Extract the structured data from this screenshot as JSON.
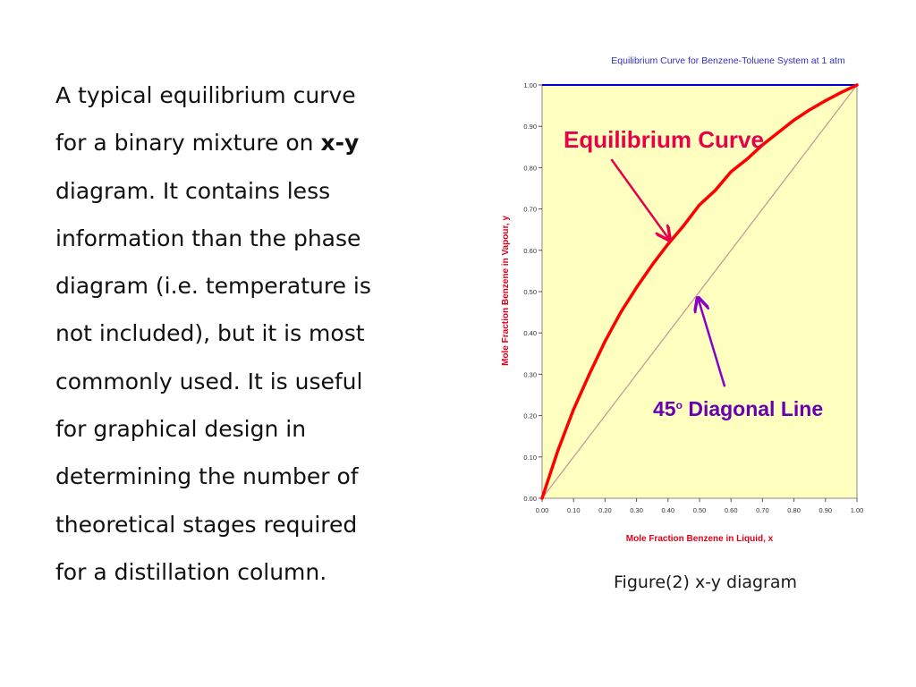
{
  "paragraph": {
    "lines": [
      "A typical equilibrium curve",
      "for a binary mixture on ",
      "diagram. It contains  less",
      "information than the phase",
      "diagram (i.e. temperature is",
      "not included), but it is most",
      "commonly used. It is useful",
      "for graphical design in",
      "determining the number of",
      "theoretical stages required",
      "for a distillation column."
    ],
    "bold_term": "x-y"
  },
  "caption": "Figure(2) x-y diagram",
  "colors": {
    "plot_background": "#ffffc0",
    "equilibrium_curve": "#ff0000",
    "diagonal_line": "#c99a9a",
    "top_line": "#0000cc",
    "title_text": "#2f2fc4",
    "axis_label_text": "#e0001a",
    "curve_annotation": "#e8004a",
    "diagonal_annotation": "#6a00b0",
    "diagonal_arrow": "#8a00c8"
  },
  "chart_data": {
    "type": "line",
    "title": "Equilibrium Curve for Benzene-Toluene System at 1 atm",
    "xlabel": "Mole Fraction Benzene in Liquid, x",
    "ylabel": "Mole Fraction Benzene in Vapour, y",
    "xlim": [
      0,
      1
    ],
    "ylim": [
      0,
      1
    ],
    "x_ticks": [
      "0.00",
      "0.10",
      "0.20",
      "0.30",
      "0.40",
      "0.50",
      "0.60",
      "0.70",
      "0.80",
      "0.90",
      "1.00"
    ],
    "y_ticks": [
      "0.00",
      "0.10",
      "0.20",
      "0.30",
      "0.40",
      "0.50",
      "0.60",
      "0.70",
      "0.80",
      "0.90",
      "1.00"
    ],
    "grid": false,
    "series": [
      {
        "x": [
          0.0,
          0.05,
          0.1,
          0.15,
          0.2,
          0.25,
          0.3,
          0.35,
          0.4,
          0.45,
          0.5,
          0.55,
          0.6,
          0.65,
          0.7,
          0.75,
          0.8,
          0.85,
          0.9,
          0.95,
          1.0
        ],
        "y": [
          0.0,
          0.115,
          0.215,
          0.3,
          0.38,
          0.45,
          0.51,
          0.565,
          0.615,
          0.66,
          0.71,
          0.745,
          0.79,
          0.82,
          0.855,
          0.885,
          0.915,
          0.94,
          0.962,
          0.982,
          1.0
        ]
      },
      {
        "x": [
          0,
          1
        ],
        "y": [
          0,
          1
        ]
      },
      {
        "x": [
          0,
          1
        ],
        "y": [
          1,
          1
        ]
      }
    ],
    "annotations": [
      {
        "text": "Equilibrium Curve",
        "arrow_from": [
          0.22,
          0.82
        ],
        "arrow_to": [
          0.405,
          0.625
        ]
      },
      {
        "text": "45",
        "superscript": "o",
        "suffix": " Diagonal Line",
        "arrow_from": [
          0.58,
          0.27
        ],
        "arrow_to": [
          0.495,
          0.485
        ]
      }
    ]
  }
}
